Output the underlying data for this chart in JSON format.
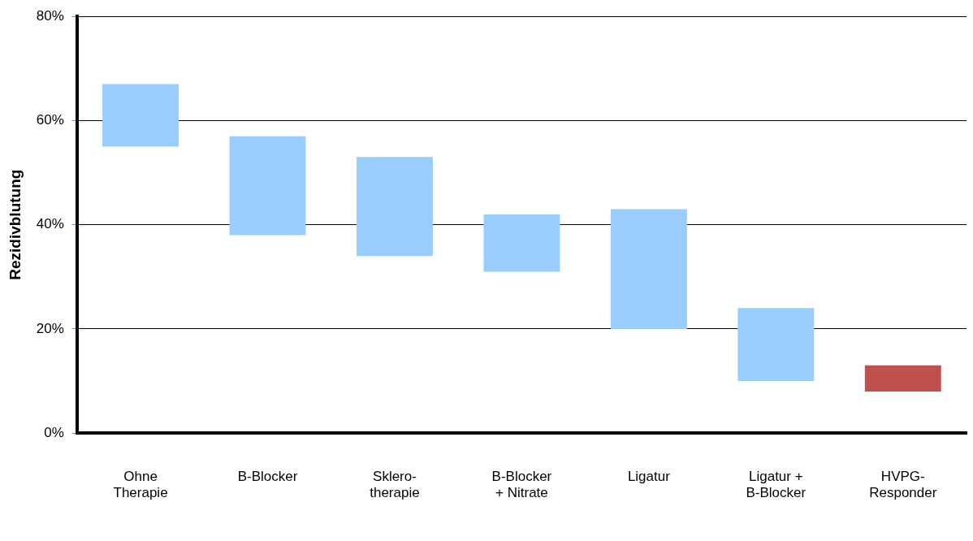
{
  "chart_data": {
    "type": "bar",
    "ylabel": "Rezidivblutung",
    "categories": [
      "Ohne\nTherapie",
      "B-Blocker",
      "Sklero-\ntherapie",
      "B-Blocker\n+ Nitrate",
      "Ligatur",
      "Ligatur +\nB-Blocker",
      "HVPG-\nResponder"
    ],
    "base": [
      55,
      38,
      34,
      31,
      20,
      10,
      8
    ],
    "values": [
      12,
      19,
      19,
      11,
      23,
      14,
      5
    ],
    "colors": [
      "#99ccff",
      "#99ccff",
      "#99ccff",
      "#99ccff",
      "#99ccff",
      "#99ccff",
      "#c0504d"
    ],
    "ylim": [
      0,
      80
    ],
    "yticks": [
      {
        "value": 0,
        "label": "0%"
      },
      {
        "value": 20,
        "label": "20%"
      },
      {
        "value": 40,
        "label": "40%"
      },
      {
        "value": 60,
        "label": "60%"
      },
      {
        "value": 80,
        "label": "80%"
      }
    ],
    "grid": "y",
    "legend": false
  }
}
